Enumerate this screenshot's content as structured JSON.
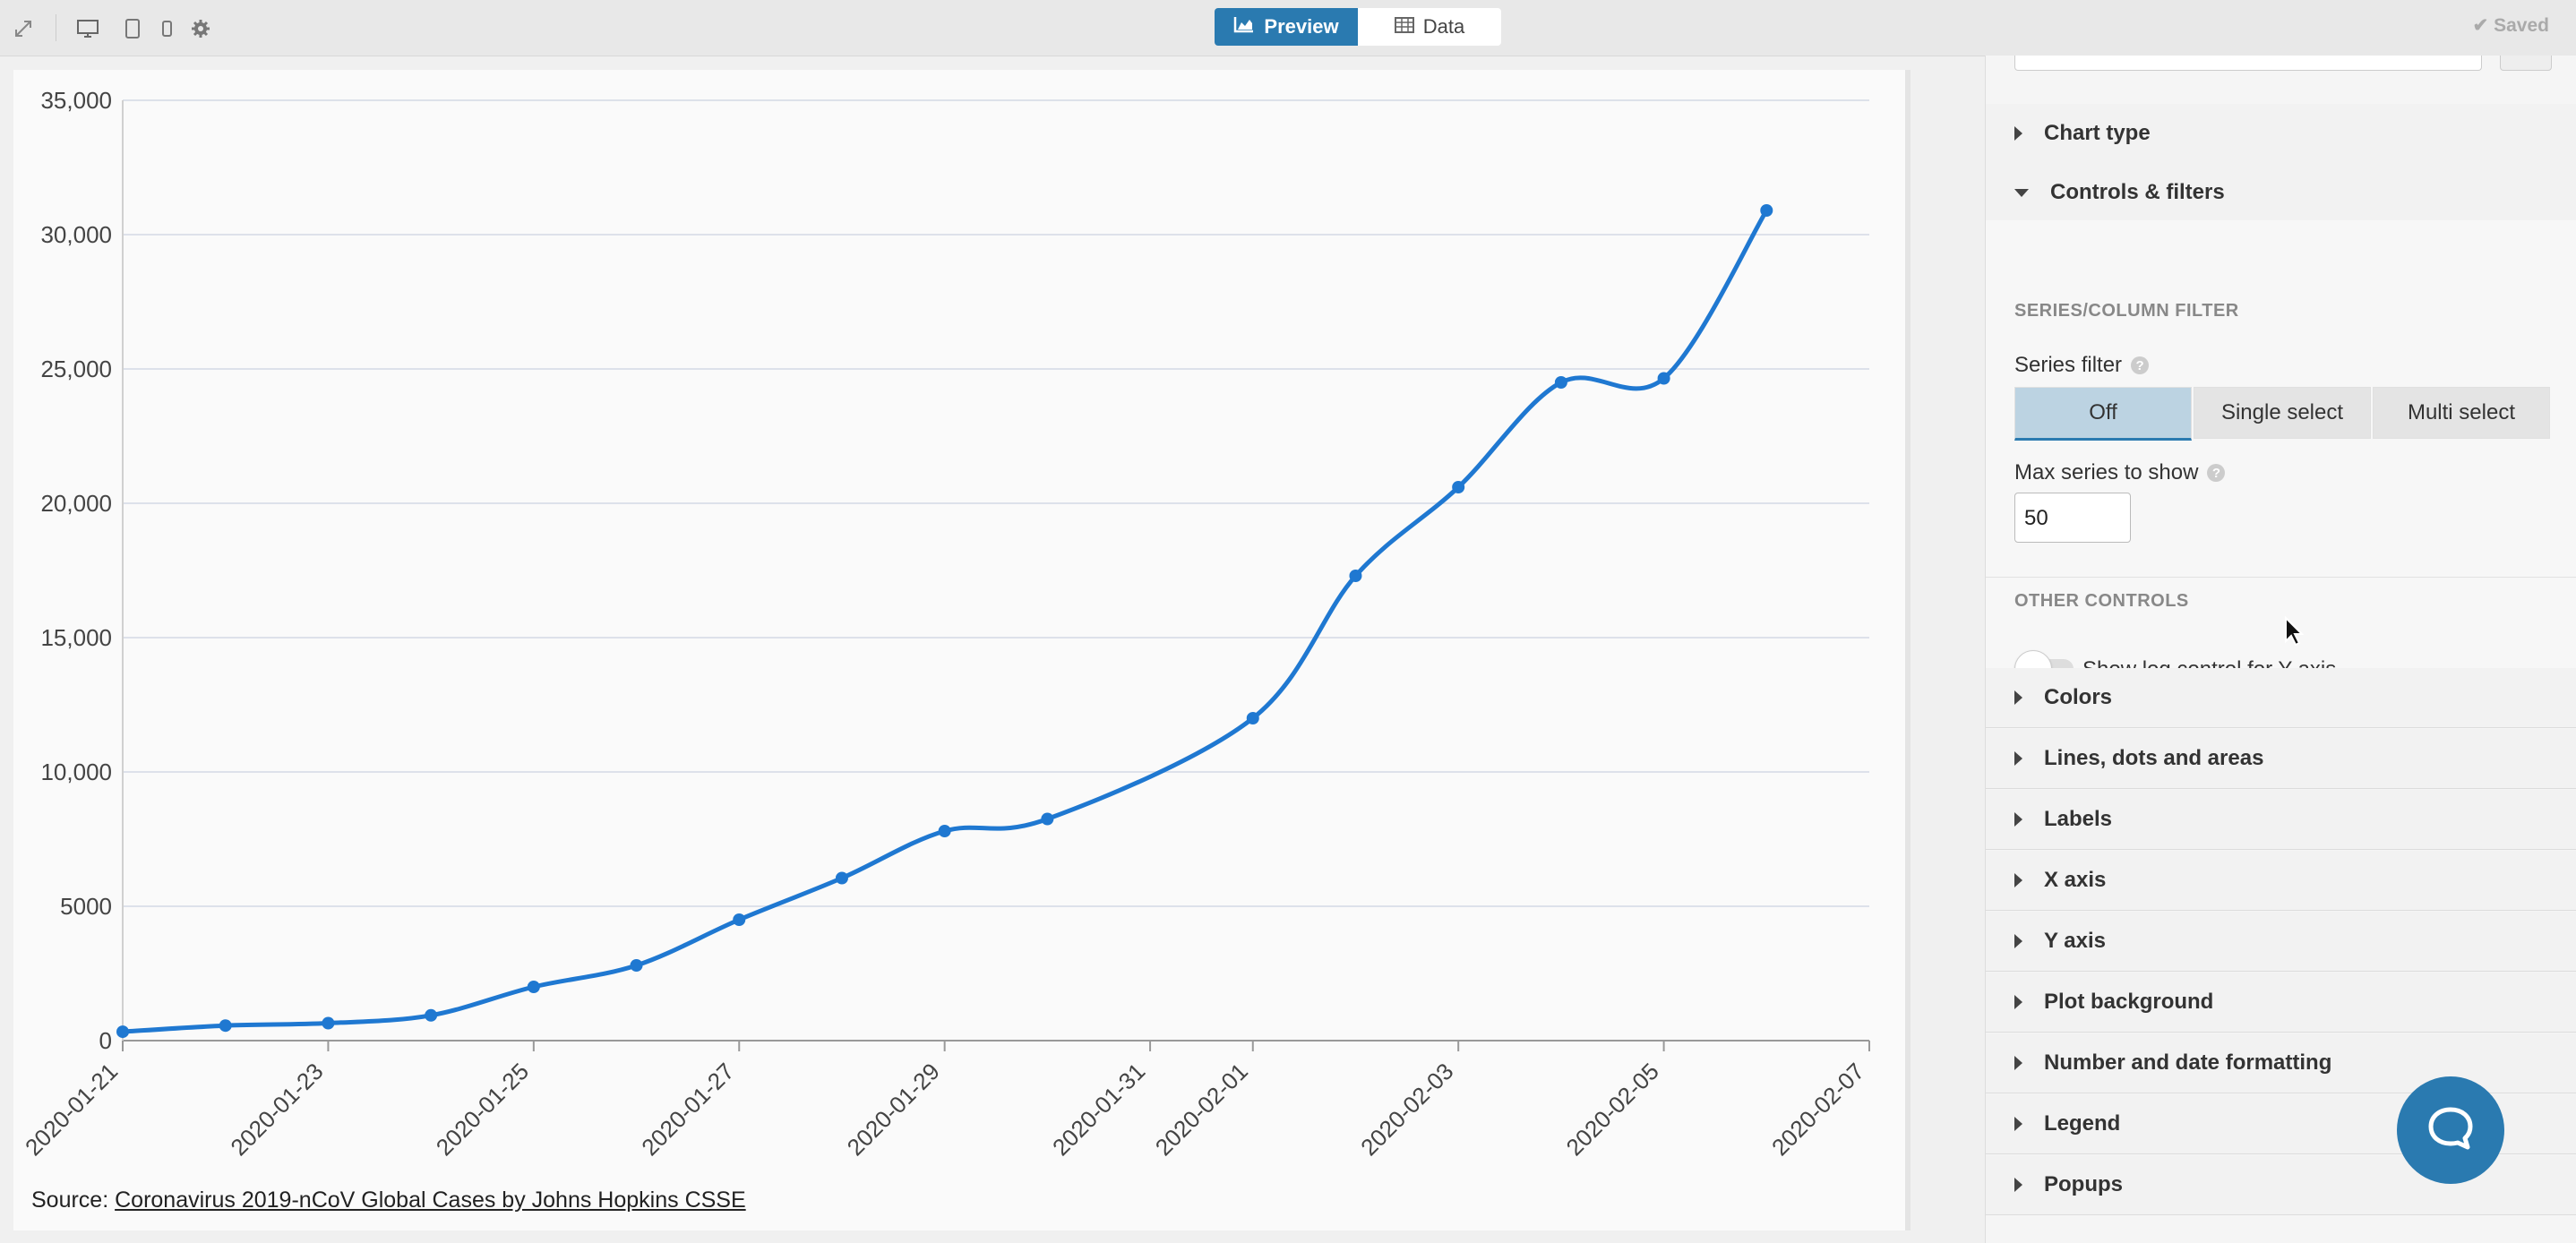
{
  "toolbar": {
    "icons": [
      "expand-icon",
      "desktop-icon",
      "tablet-icon",
      "mobile-icon",
      "gear-icon"
    ],
    "preview_label": "Preview",
    "data_label": "Data",
    "saved_label": "Saved",
    "accent": "#2a7ab0"
  },
  "chart": {
    "source_prefix": "Source:",
    "source_link": "Coronavirus 2019-nCoV Global Cases by Johns Hopkins CSSE"
  },
  "chart_data": {
    "type": "line",
    "x_tick_labels": [
      "2020-01-21",
      "2020-01-23",
      "2020-01-25",
      "2020-01-27",
      "2020-01-29",
      "2020-01-31",
      "2020-02-01",
      "2020-02-03",
      "2020-02-05",
      "2020-02-07"
    ],
    "y_tick_labels": [
      "0",
      "5000",
      "10,000",
      "15,000",
      "20,000",
      "25,000",
      "30,000",
      "35,000"
    ],
    "y_ticks": [
      0,
      5000,
      10000,
      15000,
      20000,
      25000,
      30000,
      35000
    ],
    "ylim": [
      0,
      35000
    ],
    "xlim": [
      "2020-01-21",
      "2020-02-07"
    ],
    "grid": true,
    "series": [
      {
        "color": "#1f78d1",
        "x": [
          "2020-01-21",
          "2020-01-22",
          "2020-01-23",
          "2020-01-24",
          "2020-01-25",
          "2020-01-26",
          "2020-01-27",
          "2020-01-28",
          "2020-01-29",
          "2020-01-30",
          "2020-02-01",
          "2020-02-02",
          "2020-02-03",
          "2020-02-04",
          "2020-02-05",
          "2020-02-06"
        ],
        "values": [
          330,
          560,
          650,
          940,
          2000,
          2800,
          4500,
          6050,
          7800,
          8250,
          12000,
          17300,
          20600,
          24500,
          24650,
          30900
        ]
      }
    ]
  },
  "sidebar": {
    "sections_top": [
      "Chart type"
    ],
    "open_section": "Controls & filters",
    "series_column_filter_heading": "SERIES/COLUMN FILTER",
    "series_filter_label": "Series filter",
    "series_filter_options": [
      "Off",
      "Single select",
      "Multi select"
    ],
    "series_filter_selected": "Off",
    "max_series_label": "Max series to show",
    "max_series_value": "50",
    "other_controls_heading": "OTHER CONTROLS",
    "log_toggle_label": "Show log control for Y axis",
    "log_toggle_on": false,
    "sections_bottom": [
      "Colors",
      "Lines, dots and areas",
      "Labels",
      "X axis",
      "Y axis",
      "Plot background",
      "Number and date formatting",
      "Legend",
      "Popups"
    ]
  },
  "chat_button": {
    "icon": "chat-bubble-icon"
  }
}
